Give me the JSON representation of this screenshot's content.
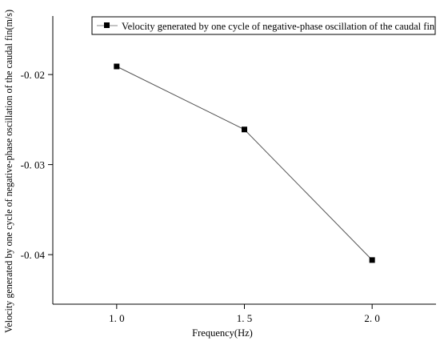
{
  "chart_data": {
    "type": "line",
    "xlabel": "Frequency(Hz)",
    "ylabel": "Velocity generated by one cycle of negative-phase oscillation of the caudal fin(m/s)",
    "x": [
      1.0,
      1.5,
      2.0
    ],
    "x_ticks": [
      "1. 0",
      "1. 5",
      "2. 0"
    ],
    "y_ticks": [
      "-0. 02",
      "-0. 03",
      "-0. 04"
    ],
    "y_tick_values": [
      -0.02,
      -0.03,
      -0.04
    ],
    "xlim": [
      0.75,
      2.25
    ],
    "ylim": [
      -0.0455,
      -0.0135
    ],
    "grid": false,
    "legend_position": "top-right",
    "series": [
      {
        "name": "Velocity generated by one cycle of negative-phase oscillation of the caudal fin",
        "values": [
          -0.0191,
          -0.0261,
          -0.0406
        ],
        "color": "#000000",
        "marker": "square"
      }
    ]
  }
}
